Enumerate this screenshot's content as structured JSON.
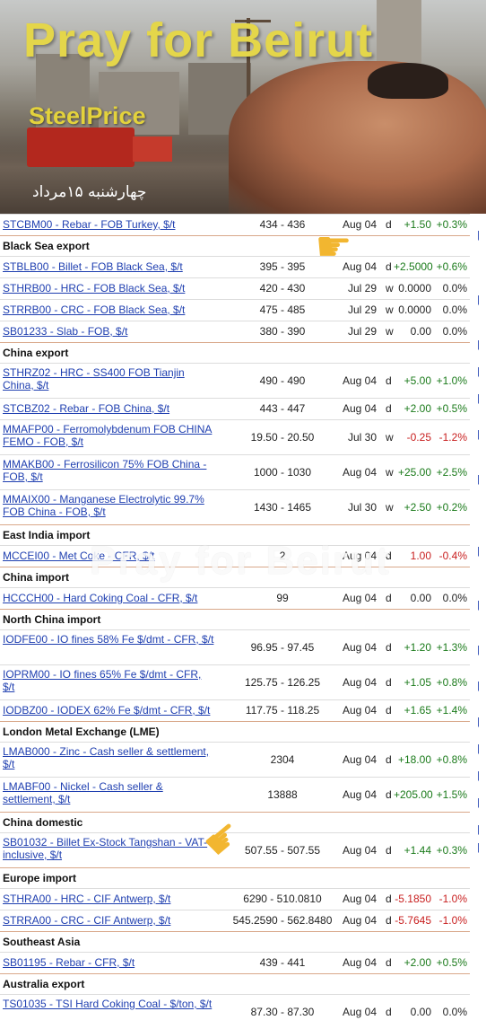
{
  "banner": {
    "title": "Pray for Beirut",
    "subtitle": "SteelPrice",
    "date": "چهارشنبه ۱۵مرداد"
  },
  "watermark": "Pray for Beirut",
  "sections": [
    {
      "header": "",
      "rows": [
        {
          "name": "STCBM00 - Rebar - FOB Turkey, $/t",
          "price": "434 - 436",
          "date": "Aug 04",
          "period": "d",
          "change": "+1.50",
          "pct": "+0.3%",
          "dir": "pos"
        }
      ]
    },
    {
      "header": "Black Sea export",
      "rows": [
        {
          "name": "STBLB00 - Billet - FOB Black Sea, $/t",
          "price": "395 - 395",
          "date": "Aug 04",
          "period": "d",
          "change": "+2.5000",
          "pct": "+0.6%",
          "dir": "pos"
        },
        {
          "name": "STHRB00 - HRC - FOB Black Sea, $/t",
          "price": "420 - 430",
          "date": "Jul 29",
          "period": "w",
          "change": "0.0000",
          "pct": "0.0%",
          "dir": "neu"
        },
        {
          "name": "STRRB00 - CRC - FOB Black Sea, $/t",
          "price": "475 - 485",
          "date": "Jul 29",
          "period": "w",
          "change": "0.0000",
          "pct": "0.0%",
          "dir": "neu"
        },
        {
          "name": "SB01233 - Slab - FOB, $/t",
          "price": "380 - 390",
          "date": "Jul 29",
          "period": "w",
          "change": "0.00",
          "pct": "0.0%",
          "dir": "neu"
        }
      ]
    },
    {
      "header": "China export",
      "rows": [
        {
          "name": "STHRZ02 - HRC - SS400 FOB Tianjin China, $/t",
          "price": "490 - 490",
          "date": "Aug 04",
          "period": "d",
          "change": "+5.00",
          "pct": "+1.0%",
          "dir": "pos"
        },
        {
          "name": "STCBZ02 - Rebar - FOB China, $/t",
          "price": "443 - 447",
          "date": "Aug 04",
          "period": "d",
          "change": "+2.00",
          "pct": "+0.5%",
          "dir": "pos"
        },
        {
          "name": "MMAFP00 - Ferromolybdenum FOB CHINA FEMO - FOB, $/t",
          "price": "19.50 - 20.50",
          "date": "Jul 30",
          "period": "w",
          "change": "-0.25",
          "pct": "-1.2%",
          "dir": "neg"
        },
        {
          "name": "MMAKB00 - Ferrosilicon 75% FOB China - FOB, $/t",
          "price": "1000 - 1030",
          "date": "Aug 04",
          "period": "w",
          "change": "+25.00",
          "pct": "+2.5%",
          "dir": "pos"
        },
        {
          "name": "MMAIX00 - Manganese Electrolytic 99.7% FOB China - FOB, $/t",
          "price": "1430 - 1465",
          "date": "Jul 30",
          "period": "w",
          "change": "+2.50",
          "pct": "+0.2%",
          "dir": "pos"
        }
      ]
    },
    {
      "header": "East India import",
      "rows": [
        {
          "name": "MCCEI00 - Met Coke - CFR, $/t",
          "price": "2",
          "date": "Aug 04",
          "period": "d",
          "change": "1.00",
          "pct": "-0.4%",
          "dir": "neg"
        }
      ]
    },
    {
      "header": "China import",
      "rows": [
        {
          "name": "HCCCH00 - Hard Coking Coal - CFR, $/t",
          "price": "99",
          "date": "Aug 04",
          "period": "d",
          "change": "0.00",
          "pct": "0.0%",
          "dir": "neu"
        }
      ]
    },
    {
      "header": "North China import",
      "rows": [
        {
          "name": "IODFE00 - IO fines 58% Fe $/dmt - CFR, $/t",
          "price": "96.95 - 97.45",
          "date": "Aug 04",
          "period": "d",
          "change": "+1.20",
          "pct": "+1.3%",
          "dir": "pos"
        },
        {
          "name": "IOPRM00 - IO fines 65% Fe $/dmt - CFR, $/t",
          "price": "125.75 - 126.25",
          "date": "Aug 04",
          "period": "d",
          "change": "+1.05",
          "pct": "+0.8%",
          "dir": "pos"
        },
        {
          "name": "IODBZ00 - IODEX 62% Fe $/dmt - CFR, $/t",
          "price": "117.75 - 118.25",
          "date": "Aug 04",
          "period": "d",
          "change": "+1.65",
          "pct": "+1.4%",
          "dir": "pos"
        }
      ]
    },
    {
      "header": "London Metal Exchange (LME)",
      "rows": [
        {
          "name": "LMAB000 - Zinc - Cash seller & settlement, $/t",
          "price": "2304",
          "date": "Aug 04",
          "period": "d",
          "change": "+18.00",
          "pct": "+0.8%",
          "dir": "pos"
        },
        {
          "name": "LMABF00 - Nickel - Cash seller & settlement, $/t",
          "price": "13888",
          "date": "Aug 04",
          "period": "d",
          "change": "+205.00",
          "pct": "+1.5%",
          "dir": "pos"
        }
      ]
    },
    {
      "header": "China domestic",
      "rows": [
        {
          "name": "SB01032 - Billet Ex-Stock Tangshan - VAT-inclusive, $/t",
          "price": "507.55 - 507.55",
          "date": "Aug 04",
          "period": "d",
          "change": "+1.44",
          "pct": "+0.3%",
          "dir": "pos"
        }
      ]
    },
    {
      "header": "Europe import",
      "rows": [
        {
          "name": "STHRA00 - HRC - CIF Antwerp, $/t",
          "price": "6290 - 510.0810",
          "date": "Aug 04",
          "period": "d",
          "change": "-5.1850",
          "pct": "-1.0%",
          "dir": "neg"
        },
        {
          "name": "STRRA00 - CRC - CIF Antwerp, $/t",
          "price": "545.2590 - 562.8480",
          "date": "Aug 04",
          "period": "d",
          "change": "-5.7645",
          "pct": "-1.0%",
          "dir": "neg"
        }
      ]
    },
    {
      "header": "Southeast Asia",
      "rows": [
        {
          "name": "SB01195 - Rebar - CFR, $/t",
          "price": "439 - 441",
          "date": "Aug 04",
          "period": "d",
          "change": "+2.00",
          "pct": "+0.5%",
          "dir": "pos"
        }
      ]
    },
    {
      "header": "Australia export",
      "rows": [
        {
          "name": "TS01035 - TSI Hard Coking Coal - $/ton, $/t",
          "price": "87.30 - 87.30",
          "date": "Aug 04",
          "period": "d",
          "change": "0.00",
          "pct": "0.0%",
          "dir": "neu"
        }
      ]
    }
  ],
  "colors": {
    "link": "#1f3fb0",
    "positive": "#1a7a1a",
    "negative": "#c81e1e",
    "banner_title": "#e4d64a",
    "section_divider": "#d9a88a"
  }
}
